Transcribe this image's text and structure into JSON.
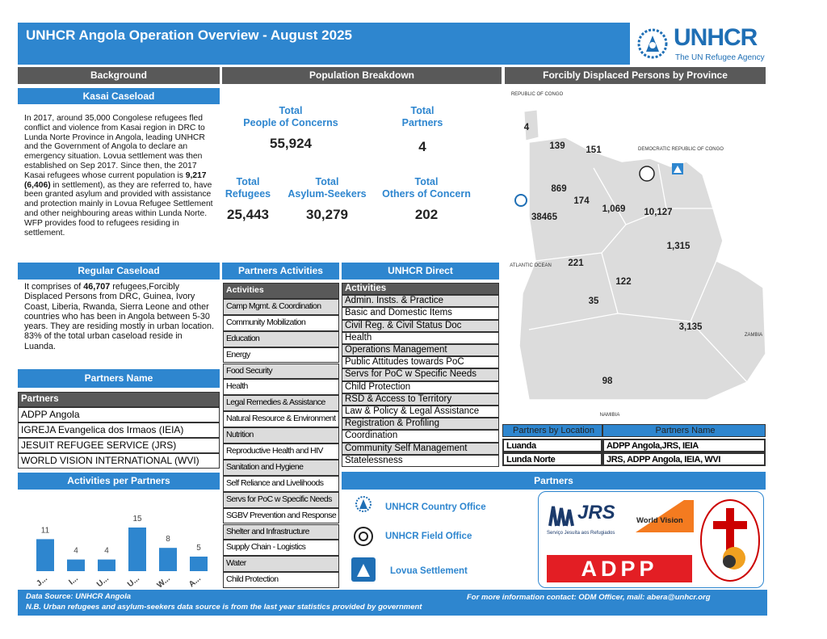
{
  "header": {
    "title": "UNHCR Angola Operation Overview - August 2025",
    "logo_text": "UNHCR",
    "logo_tagline": "The UN Refugee Agency"
  },
  "background": {
    "heading": "Background",
    "kasai": {
      "heading": "Kasai Caseload",
      "parts": [
        "In 2017, around 35,000 Congolese refugees fled conflict and violence from Kasai region in DRC to Lunda Norte Province in Angola, leading UNHCR and the Government of Angola to declare an emergency situation. Lovua settlement was then established on Sep 2017. Since then, the 2017 Kasai refugees whose current population is ",
        "9,217 (6,406)",
        " in settlement), as they are referred to, have been granted asylum and provided with assistance and protection mainly in Lovua Refugee Settlement and other neighbouring areas within Lunda Norte. WFP provides food to refugees residing in settlement."
      ]
    },
    "regular": {
      "heading": "Regular Caseload",
      "parts": [
        "It comprises of ",
        "46,707",
        " refugees,Forcibly Displaced Persons from DRC, Guinea, Ivory Coast, Liberia, Rwanda, Sierra Leone and other countries who has been in Angola between 5-30 years. They are residing mostly in urban location. 83% of the total urban caseload reside in Luanda."
      ]
    }
  },
  "partners_name": {
    "heading": "Partners Name",
    "column": "Partners",
    "rows": [
      "ADPP Angola",
      "IGREJA Evangelica dos Irmaos (IEIA)",
      "JESUIT REFUGEE SERVICE (JRS)",
      "WORLD VISION INTERNATIONAL (WVI)"
    ]
  },
  "chart_data": {
    "type": "bar",
    "title": "Activities per Partners",
    "categories": [
      "J...",
      "I...",
      "U...",
      "U...",
      "W...",
      "A..."
    ],
    "values": [
      11,
      4,
      4,
      15,
      8,
      5
    ],
    "color": "#2e86cf"
  },
  "population": {
    "heading": "Population Breakdown",
    "stats": [
      {
        "label": [
          "Total",
          "People of Concerns"
        ],
        "value": "55,924"
      },
      {
        "label": [
          "Total",
          "Partners"
        ],
        "value": "4"
      },
      {
        "label": [
          "Total",
          "Refugees"
        ],
        "value": "25,443"
      },
      {
        "label": [
          "Total",
          "Asylum-Seekers"
        ],
        "value": "30,279"
      },
      {
        "label": [
          "Total",
          "Others of Concern"
        ],
        "value": "202"
      }
    ]
  },
  "partners_activities": {
    "heading": "Partners Activities",
    "column": "Activities",
    "rows": [
      "Camp Mgmt. & Coordination",
      "Community Mobilization",
      "Education",
      "Energy",
      "Food Security",
      "Health",
      "Legal Remedies & Assistance",
      "Natural Resource & Environment",
      "Nutrition",
      "Reproductive Health and HIV",
      "Sanitation and Hygiene",
      "Self Reliance and Livelihoods",
      "Servs for PoC w Specific Needs",
      "SGBV Prevention and Response",
      "Shelter and Infrastructure",
      "Supply Chain - Logistics",
      "Water",
      "Child Protection"
    ]
  },
  "unhcr_direct": {
    "heading": "UNHCR Direct",
    "column": "Activities",
    "rows": [
      "Admin. Insts. & Practice",
      "Basic and Domestic Items",
      "Civil Reg. & Civil Status Doc",
      "Health",
      "Operations Management",
      "Public Attitudes towards PoC",
      "Servs for PoC w Specific Needs",
      "Child Protection",
      "RSD & Access to Territory",
      "Law & Policy & Legal Assistance",
      "Registration & Profiling",
      "Coordination",
      "Community Self Management",
      "Statelessness"
    ]
  },
  "map": {
    "heading": "Forcibly Displaced Persons by Province",
    "countries": [
      "REPUBLIC OF CONGO",
      "DEMOCRATIC REPUBLIC OF CONGO",
      "ATLANTIC OCEAN",
      "ZAMBIA",
      "NAMIBIA"
    ],
    "values": [
      "4",
      "139",
      "151",
      "869",
      "174",
      "38465",
      "1,069",
      "10,127",
      "1,315",
      "221",
      "122",
      "35",
      "3,135",
      "98"
    ]
  },
  "partners_by_location": {
    "columns": [
      "Partners by Location",
      "Partners Name"
    ],
    "rows": [
      [
        "Luanda",
        "ADPP Angola,JRS, IEIA"
      ],
      [
        "Lunda Norte",
        "JRS, ADPP Angola, IEIA, WVI"
      ]
    ]
  },
  "partners": {
    "heading": "Partners",
    "legend": [
      "UNHCR Country Office",
      "UNHCR Field Office",
      "Lovua Settlement"
    ],
    "logos": {
      "jrs": "JRS",
      "jrs_sub": "Serviço Jesuíta aos Refugiados",
      "world_vision": "World Vision",
      "adpp": "ADPP"
    }
  },
  "footer": {
    "source": "Data Source: UNHCR Angola",
    "note": "N.B. Urban refugees and asylum-seekers data source is from the last year statistics provided by government",
    "contact": "For more information contact: ODM Officer, mail: abera@unhcr.org"
  }
}
